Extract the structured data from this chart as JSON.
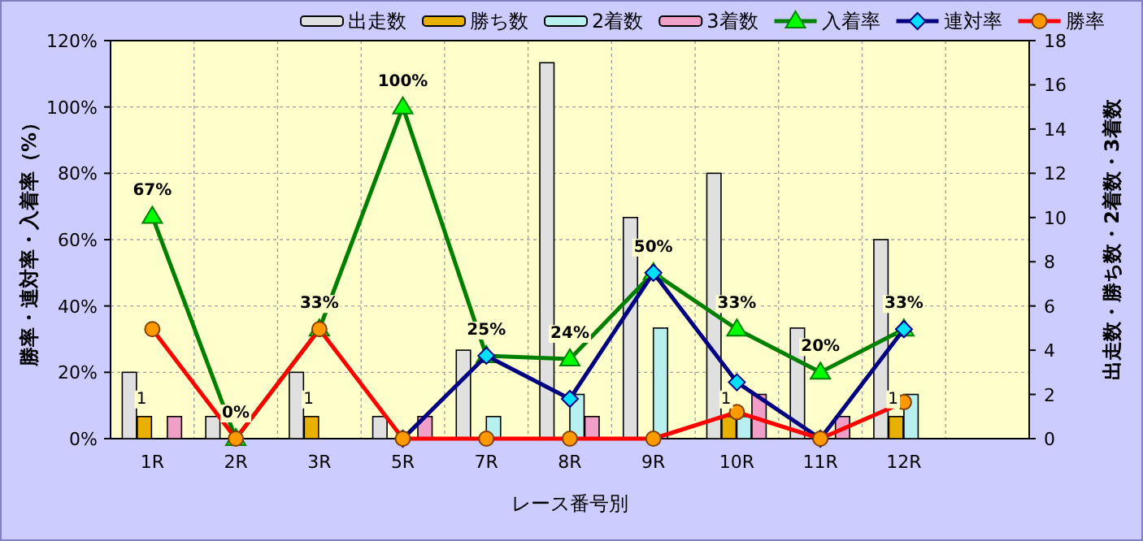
{
  "chart_data": {
    "type": "bar",
    "xlabel": "レース番号別",
    "ylabel": "勝率・連対率・入着率（%）",
    "y2label": "出走数・勝ち数・2着数・3着数",
    "categories": [
      "1R",
      "2R",
      "3R",
      "5R",
      "7R",
      "8R",
      "9R",
      "10R",
      "11R",
      "12R",
      null
    ],
    "ylim": [
      0,
      120
    ],
    "yticks": [
      {
        "value": 0,
        "label": "0%"
      },
      {
        "value": 20,
        "label": "20%"
      },
      {
        "value": 40,
        "label": "40%"
      },
      {
        "value": 60,
        "label": "60%"
      },
      {
        "value": 80,
        "label": "80%"
      },
      {
        "value": 100,
        "label": "100%"
      },
      {
        "value": 120,
        "label": "120%"
      }
    ],
    "y2lim": [
      0,
      18
    ],
    "y2ticks": [
      0,
      2,
      4,
      6,
      8,
      10,
      12,
      14,
      16,
      18
    ],
    "grid": true,
    "legend": "top",
    "series": [
      {
        "name": "出走数",
        "axis": "y2",
        "color": "#e0e0e0",
        "values": [
          3,
          1,
          3,
          1,
          4,
          17,
          10,
          12,
          5,
          9,
          null
        ]
      },
      {
        "name": "勝ち数",
        "axis": "y2",
        "color": "#e8b000",
        "values": [
          1,
          0,
          1,
          0,
          0,
          0,
          0,
          1,
          0,
          1,
          null
        ],
        "value_labels": [
          "1",
          null,
          "1",
          null,
          null,
          null,
          null,
          "1",
          null,
          "1",
          null
        ]
      },
      {
        "name": "2着数",
        "axis": "y2",
        "color": "#b8f0f0",
        "values": [
          0,
          0,
          0,
          0,
          1,
          2,
          5,
          1,
          0,
          2,
          null
        ]
      },
      {
        "name": "3着数",
        "axis": "y2",
        "color": "#f0a0c8",
        "values": [
          1,
          0,
          0,
          1,
          0,
          1,
          0,
          2,
          1,
          0,
          null
        ]
      },
      {
        "name": "入着率",
        "type": "line",
        "axis": "y",
        "color": "#008000",
        "marker": "triangle",
        "values": [
          67,
          0,
          33,
          100,
          25,
          24,
          50,
          33,
          20,
          33,
          null
        ],
        "value_labels": [
          "67%",
          "0%",
          "33%",
          "100%",
          "25%",
          "24%",
          "50%",
          "33%",
          "20%",
          "33%",
          null
        ]
      },
      {
        "name": "連対率",
        "type": "line",
        "axis": "y",
        "color": "#000080",
        "marker": "diamond",
        "values": [
          null,
          null,
          null,
          0,
          25,
          12,
          50,
          17,
          0,
          33,
          null
        ]
      },
      {
        "name": "勝率",
        "type": "line",
        "axis": "y",
        "color": "#ff0000",
        "marker": "circle",
        "values": [
          33,
          0,
          33,
          0,
          0,
          0,
          0,
          8,
          0,
          11,
          null
        ]
      }
    ]
  }
}
